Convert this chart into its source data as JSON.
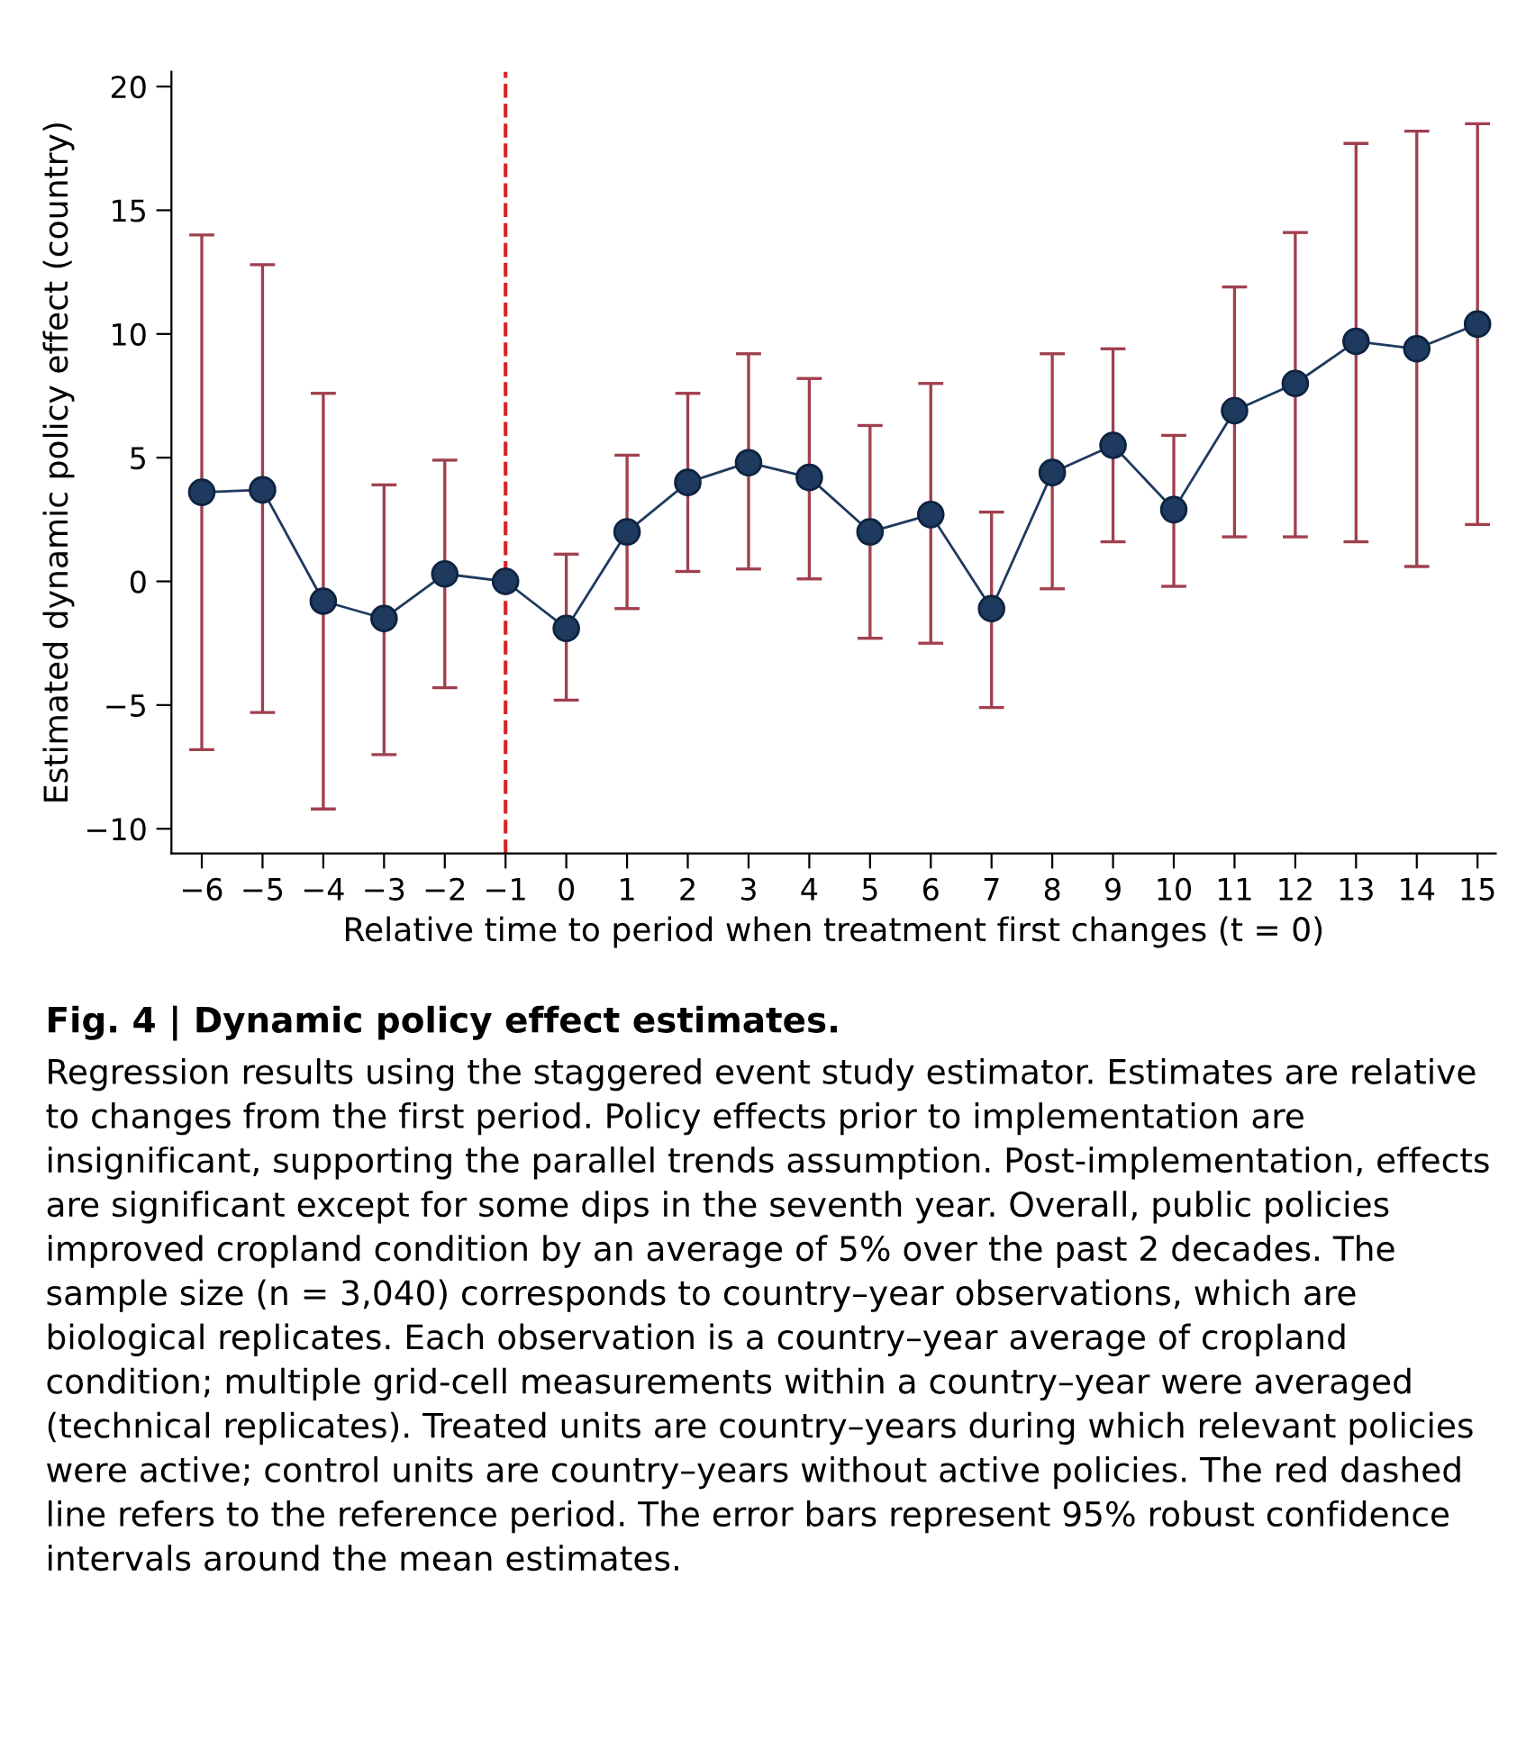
{
  "chart_data": {
    "type": "line",
    "xlabel": "Relative time to period when treatment first changes (t = 0)",
    "ylabel": "Estimated dynamic policy effect (country)",
    "x": [
      -6,
      -5,
      -4,
      -3,
      -2,
      -1,
      0,
      1,
      2,
      3,
      4,
      5,
      6,
      7,
      8,
      9,
      10,
      11,
      12,
      13,
      14,
      15
    ],
    "series": [
      {
        "color": "#1f3a5f",
        "values": [
          3.6,
          3.7,
          -0.8,
          -1.5,
          0.3,
          0,
          -1.9,
          2.0,
          4.0,
          4.8,
          4.2,
          2.0,
          2.7,
          -1.1,
          4.4,
          5.5,
          2.9,
          6.9,
          8.0,
          9.7,
          9.4,
          10.4
        ],
        "errors": [
          [
            -6.8,
            14.0
          ],
          [
            -5.3,
            12.8
          ],
          [
            -9.2,
            7.6
          ],
          [
            -7.0,
            3.9
          ],
          [
            -4.3,
            4.9
          ],
          null,
          [
            -4.8,
            1.1
          ],
          [
            -1.1,
            5.1
          ],
          [
            0.4,
            7.6
          ],
          [
            0.5,
            9.2
          ],
          [
            0.1,
            8.2
          ],
          [
            -2.3,
            6.3
          ],
          [
            -2.5,
            8.0
          ],
          [
            -5.1,
            2.8
          ],
          [
            -0.3,
            9.2
          ],
          [
            1.6,
            9.4
          ],
          [
            -0.2,
            5.9
          ],
          [
            1.8,
            11.9
          ],
          [
            1.8,
            14.1
          ],
          [
            1.6,
            17.7
          ],
          [
            0.6,
            18.2
          ],
          [
            2.3,
            18.5
          ]
        ]
      }
    ],
    "marker": "circle",
    "line_style": "solid",
    "xlim": [
      -6.5,
      15.3
    ],
    "ylim": [
      -11,
      20.6
    ],
    "xticks": [
      -6,
      -5,
      -4,
      -3,
      -2,
      -1,
      0,
      1,
      2,
      3,
      4,
      5,
      6,
      7,
      8,
      9,
      10,
      11,
      12,
      13,
      14,
      15
    ],
    "yticks": [
      -10,
      -5,
      0,
      5,
      10,
      15,
      20
    ],
    "ref_lines": [
      {
        "axis": "x",
        "value": -1,
        "color": "#d62728",
        "line_style": "dashed"
      }
    ],
    "grid": false,
    "legend": false,
    "annotations": [
      "Fig. 4 | Dynamic policy effect estimates.",
      "Regression results using the staggered event study estimator. Estimates are relative to changes from the first period. Policy effects prior to implementation are insignificant, supporting the parallel trends assumption. Post-implementation, effects are significant except for some dips in the seventh year. Overall, public policies improved cropland condition by an average of 5% over the past 2 decades. The sample size (n = 3,040) corresponds to country–year observations, which are biological replicates. Each observation is a country–year average of cropland condition; multiple grid-cell measurements within a country–year were averaged (technical replicates). Treated units are country–years during which relevant policies were active; control units are country–years without active policies. The red dashed line refers to the reference period. The error bars represent 95% robust confidence intervals around the mean estimates."
    ]
  }
}
